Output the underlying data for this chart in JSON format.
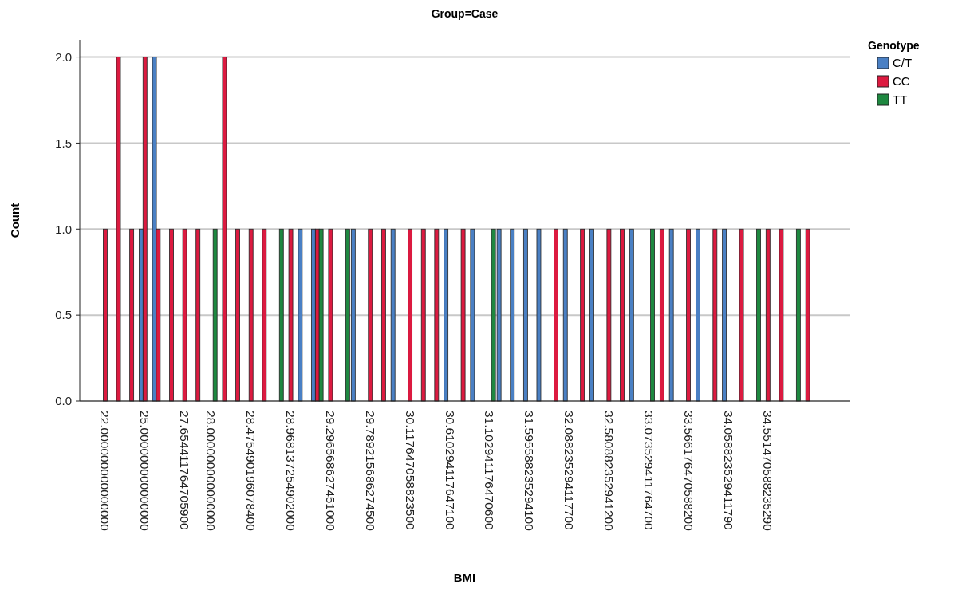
{
  "chart_data": {
    "type": "bar",
    "title": "Group=Case",
    "xlabel": "BMI",
    "ylabel": "Count",
    "legend_title": "Genotype",
    "categories": [
      "22.000000000000000",
      null,
      null,
      "25.000000000000000",
      null,
      null,
      "27.654411764705900",
      null,
      "28.000000000000000",
      null,
      null,
      "28.475490196078400",
      null,
      null,
      "28.968137254902000",
      null,
      null,
      "29.296568627451000",
      null,
      null,
      "29.789215686274500",
      null,
      null,
      "30.117647058823500",
      null,
      null,
      "30.610294117647100",
      null,
      null,
      "31.102941176470600",
      null,
      null,
      "31.595588235294100",
      null,
      null,
      "32.088235294117700",
      null,
      null,
      "32.580882352941200",
      null,
      null,
      "33.073529411764700",
      null,
      null,
      "33.566176470588200",
      null,
      null,
      "34.058823529411790",
      null,
      null,
      "34.551470588235290",
      null,
      null,
      null
    ],
    "series": [
      {
        "name": "C/T",
        "color": "#4a80c4",
        "values": [
          null,
          null,
          null,
          1,
          2,
          null,
          null,
          null,
          null,
          null,
          null,
          null,
          null,
          null,
          null,
          1,
          1,
          null,
          null,
          1,
          null,
          null,
          1,
          null,
          null,
          null,
          1,
          null,
          1,
          null,
          1,
          1,
          1,
          1,
          null,
          1,
          null,
          1,
          null,
          null,
          1,
          null,
          null,
          1,
          null,
          1,
          null,
          1,
          null,
          null,
          null,
          null,
          null,
          null
        ]
      },
      {
        "name": "CC",
        "color": "#dc1a40",
        "values": [
          1,
          2,
          1,
          2,
          1,
          1,
          1,
          1,
          null,
          2,
          1,
          1,
          1,
          null,
          1,
          null,
          1,
          1,
          null,
          null,
          1,
          1,
          null,
          1,
          1,
          1,
          null,
          1,
          null,
          null,
          null,
          null,
          null,
          null,
          1,
          null,
          1,
          null,
          1,
          1,
          null,
          null,
          1,
          null,
          1,
          null,
          1,
          null,
          1,
          null,
          1,
          1,
          null,
          1
        ]
      },
      {
        "name": "TT",
        "color": "#1e8840",
        "values": [
          null,
          null,
          null,
          null,
          null,
          null,
          null,
          null,
          1,
          null,
          null,
          null,
          null,
          1,
          null,
          null,
          1,
          null,
          1,
          null,
          null,
          null,
          null,
          null,
          null,
          null,
          null,
          null,
          null,
          1,
          null,
          null,
          null,
          null,
          null,
          null,
          null,
          null,
          null,
          null,
          null,
          1,
          null,
          null,
          null,
          null,
          null,
          null,
          null,
          1,
          null,
          null,
          1,
          null
        ]
      }
    ],
    "ylim": [
      0,
      2.1
    ],
    "yticks": [
      {
        "value": 0,
        "label": "0.0"
      },
      {
        "value": 0.5,
        "label": "0.5"
      },
      {
        "value": 1,
        "label": "1.0"
      },
      {
        "value": 1.5,
        "label": "1.5"
      },
      {
        "value": 2,
        "label": "2.0"
      }
    ],
    "grid": "y",
    "legend": "right"
  }
}
